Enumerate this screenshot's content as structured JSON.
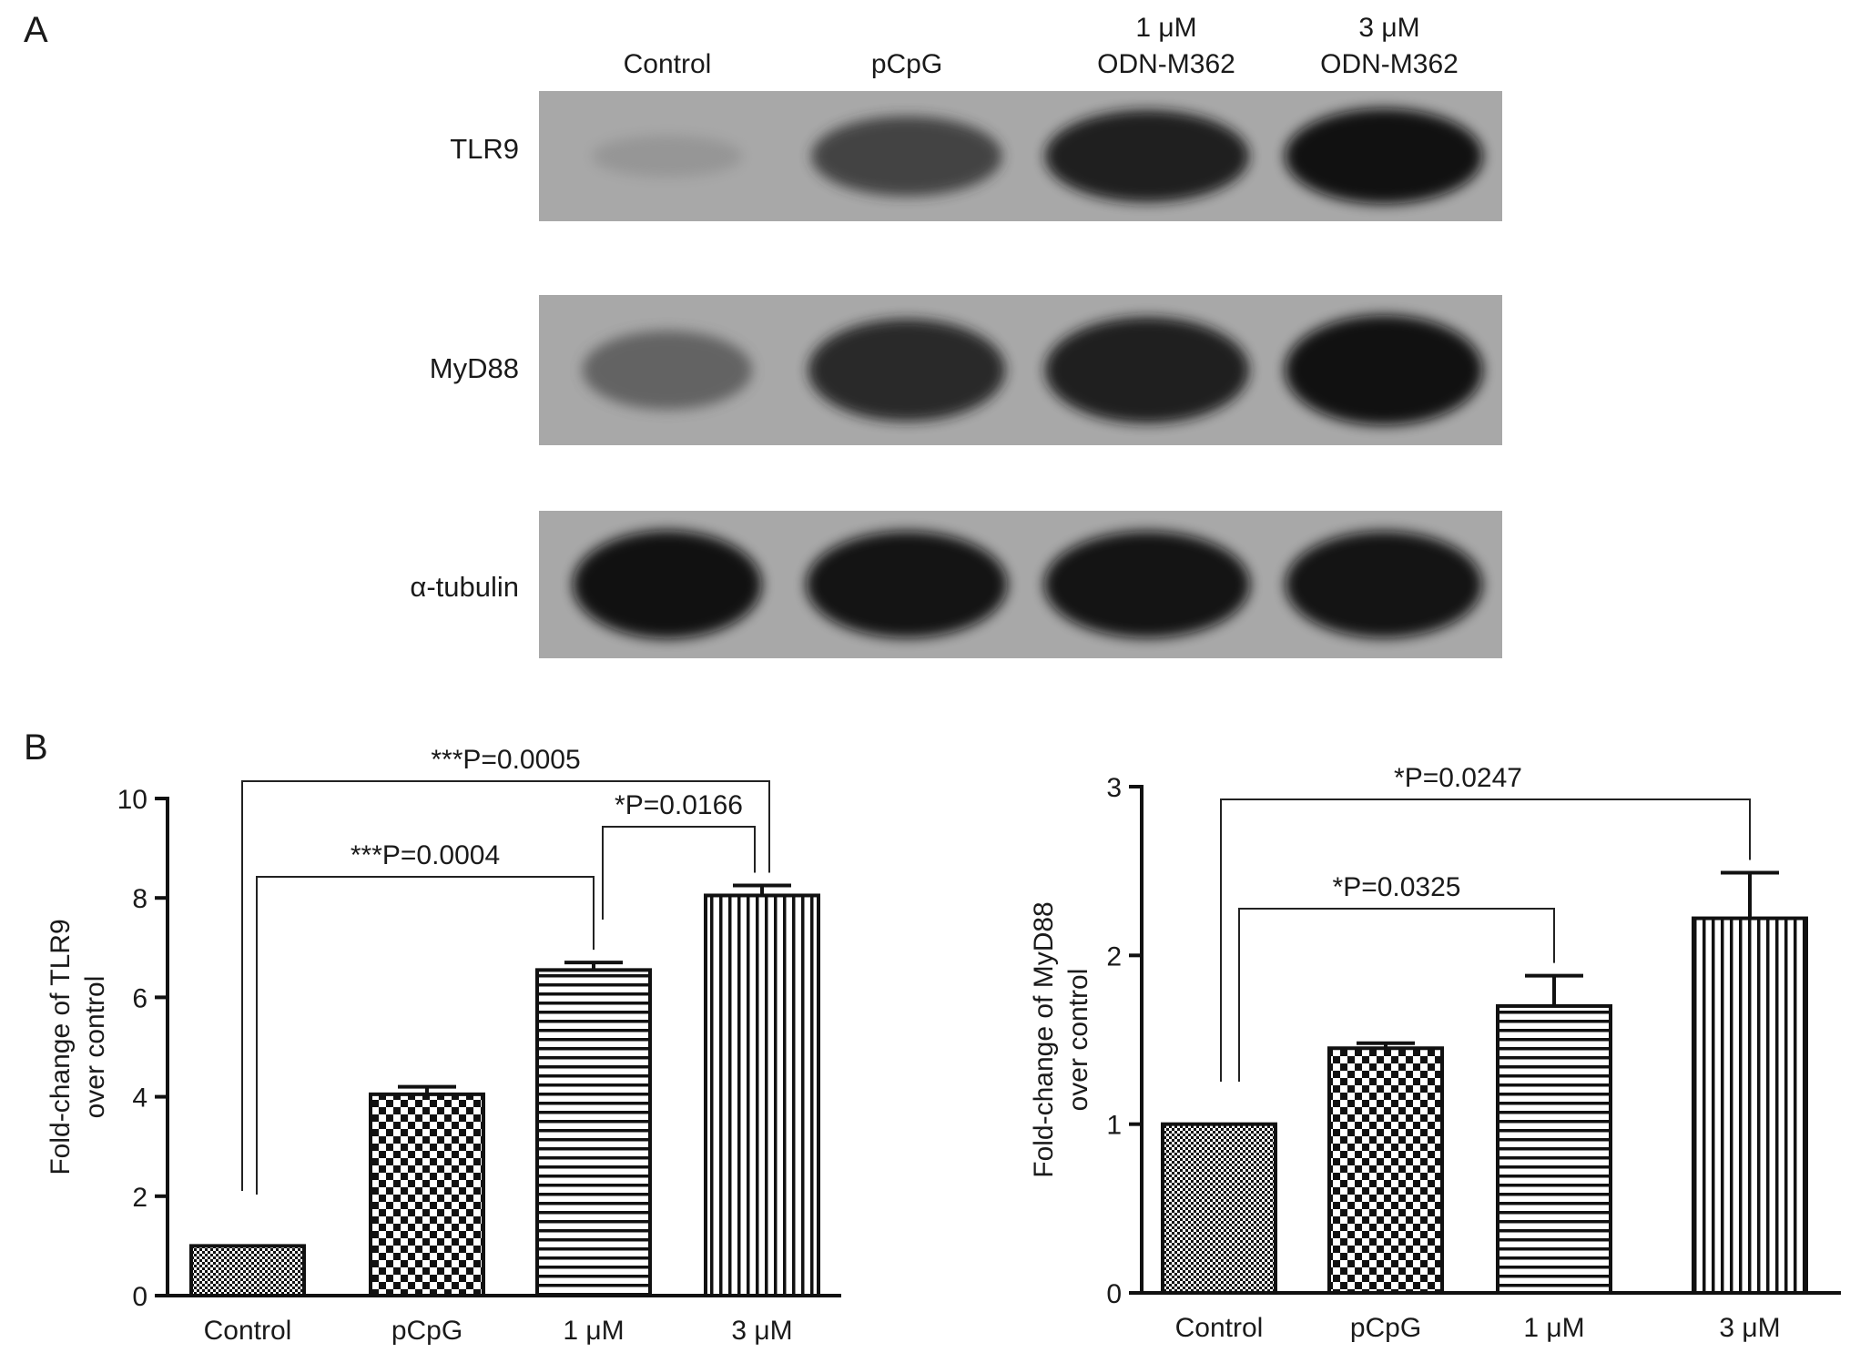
{
  "panel_a": {
    "letter": "A",
    "lanes": [
      {
        "line1": "",
        "line2": "Control"
      },
      {
        "line1": "",
        "line2": "pCpG"
      },
      {
        "line1": "1 μM",
        "line2": "ODN-M362"
      },
      {
        "line1": "3 μM",
        "line2": "ODN-M362"
      }
    ],
    "blots": [
      {
        "label": "TLR9",
        "intensities": [
          0.15,
          0.72,
          0.9,
          0.95
        ]
      },
      {
        "label": "MyD88",
        "intensities": [
          0.55,
          0.85,
          0.9,
          0.95
        ]
      },
      {
        "label": "α-tubulin",
        "intensities": [
          0.95,
          0.93,
          0.93,
          0.93
        ]
      }
    ],
    "colors": {
      "membrane": "#a8a8a8",
      "band": "#0a0a0a"
    }
  },
  "panel_b": {
    "letter": "B"
  },
  "chart_data": [
    {
      "type": "bar",
      "title": "",
      "xlabel": "",
      "ylabel": [
        "Fold-change of TLR9",
        "over control"
      ],
      "categories": [
        "Control",
        "pCpG",
        "1 μM",
        "3 μM"
      ],
      "values": [
        1.0,
        4.05,
        6.55,
        8.05
      ],
      "errors": [
        0.0,
        0.15,
        0.15,
        0.2
      ],
      "patterns": [
        "dots-fine",
        "checker",
        "horizontal",
        "vertical"
      ],
      "ylim": [
        0,
        10
      ],
      "yticks": [
        0,
        2,
        4,
        6,
        8,
        10
      ],
      "annotations": [
        {
          "text": "***P=0.0005",
          "from": 0,
          "to": 3
        },
        {
          "text": "***P=0.0004",
          "from": 0,
          "to": 2
        },
        {
          "text": "*P=0.0166",
          "from": 2,
          "to": 3
        }
      ]
    },
    {
      "type": "bar",
      "title": "",
      "xlabel": "",
      "ylabel": [
        "Fold-change of MyD88",
        "over control"
      ],
      "categories": [
        "Control",
        "pCpG",
        "1 μM",
        "3 μM"
      ],
      "values": [
        1.0,
        1.45,
        1.7,
        2.22
      ],
      "errors": [
        0.0,
        0.03,
        0.18,
        0.27
      ],
      "patterns": [
        "dots-fine",
        "checker",
        "horizontal",
        "vertical"
      ],
      "ylim": [
        0,
        3
      ],
      "yticks": [
        0,
        1,
        2,
        3
      ],
      "annotations": [
        {
          "text": "*P=0.0247",
          "from": 0,
          "to": 3
        },
        {
          "text": "*P=0.0325",
          "from": 0,
          "to": 2
        }
      ]
    }
  ]
}
